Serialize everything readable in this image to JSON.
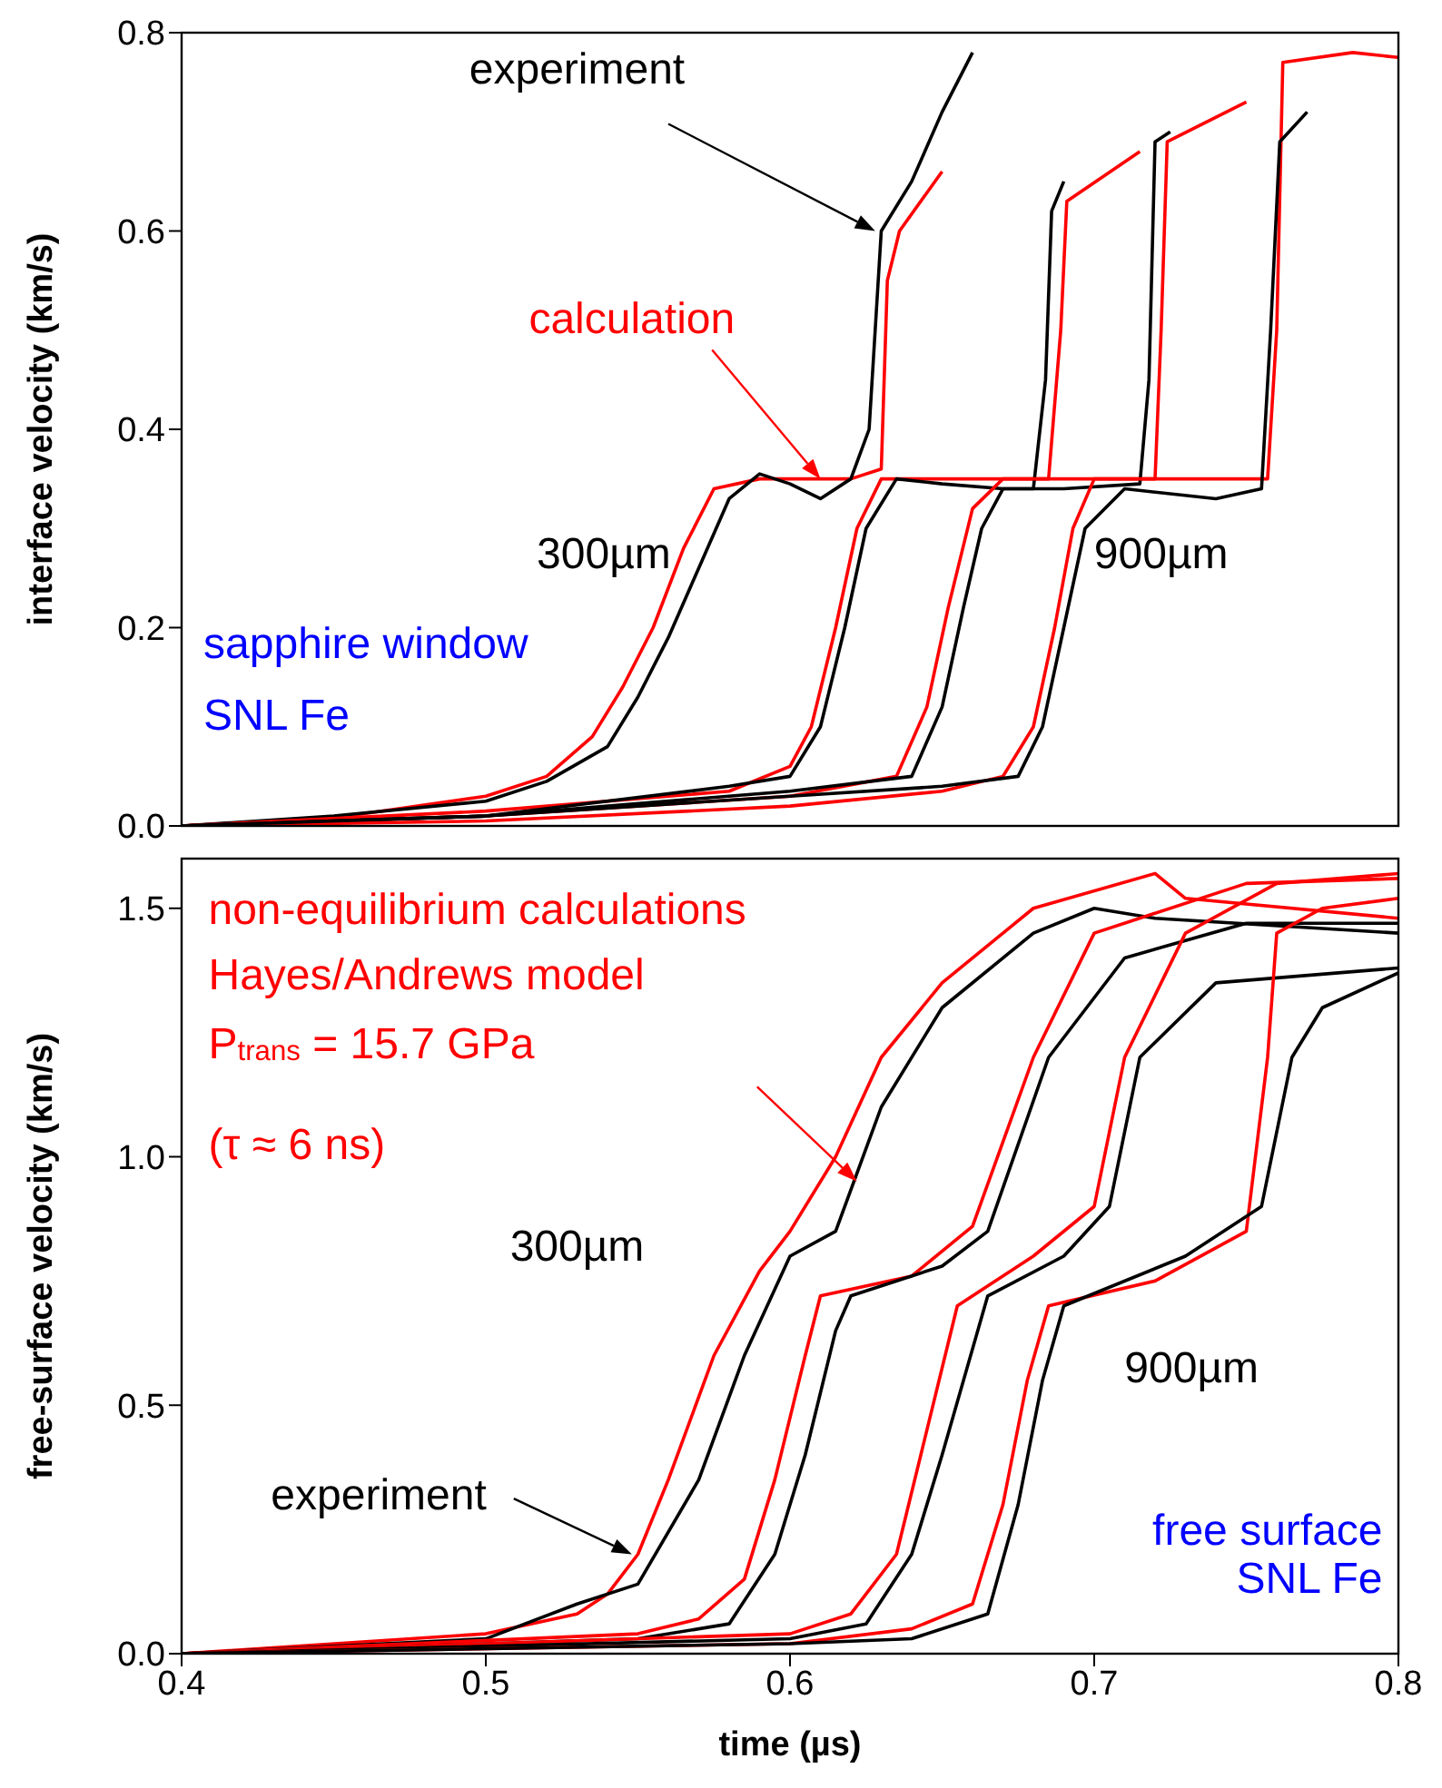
{
  "chart_data": [
    {
      "type": "line",
      "ylabel": "interface velocity (km/s)",
      "xlim": [
        0.4,
        0.8
      ],
      "xticks": [
        0.4,
        0.5,
        0.6,
        0.7,
        0.8
      ],
      "ylim": [
        0,
        0.8
      ],
      "yticks": [
        {
          "value": 0,
          "label": "0.0"
        },
        0.2,
        0.4,
        0.6,
        0.8
      ],
      "tick_labels": "y",
      "marker": "none",
      "line_style": "solid",
      "annotations": [
        "experiment",
        "calculation",
        "300µm",
        "900µm",
        "sapphire window",
        "SNL Fe"
      ],
      "series": [
        {
          "color": "#ff0000",
          "x": [
            0.4,
            0.45,
            0.5,
            0.52,
            0.535,
            0.545,
            0.555,
            0.565,
            0.575,
            0.59,
            0.62,
            0.63,
            0.632,
            0.636,
            0.65
          ],
          "values": [
            0,
            0.008,
            0.03,
            0.05,
            0.09,
            0.14,
            0.2,
            0.28,
            0.34,
            0.35,
            0.35,
            0.36,
            0.55,
            0.6,
            0.66
          ]
        },
        {
          "color": "#000000",
          "x": [
            0.4,
            0.45,
            0.5,
            0.52,
            0.54,
            0.55,
            0.56,
            0.57,
            0.58,
            0.59,
            0.6,
            0.61,
            0.62,
            0.626,
            0.63,
            0.64,
            0.65,
            0.66
          ],
          "values": [
            0,
            0.01,
            0.025,
            0.045,
            0.08,
            0.13,
            0.19,
            0.26,
            0.33,
            0.355,
            0.345,
            0.33,
            0.35,
            0.4,
            0.6,
            0.65,
            0.72,
            0.78
          ]
        },
        {
          "color": "#ff0000",
          "x": [
            0.4,
            0.5,
            0.58,
            0.6,
            0.607,
            0.615,
            0.622,
            0.63,
            0.65,
            0.685,
            0.689,
            0.691,
            0.715
          ],
          "values": [
            0,
            0.015,
            0.035,
            0.06,
            0.1,
            0.2,
            0.3,
            0.35,
            0.35,
            0.35,
            0.5,
            0.63,
            0.68
          ]
        },
        {
          "color": "#000000",
          "x": [
            0.4,
            0.5,
            0.58,
            0.6,
            0.61,
            0.618,
            0.625,
            0.635,
            0.65,
            0.67,
            0.68,
            0.684,
            0.686,
            0.69
          ],
          "values": [
            0,
            0.01,
            0.04,
            0.05,
            0.1,
            0.2,
            0.3,
            0.35,
            0.345,
            0.34,
            0.34,
            0.45,
            0.62,
            0.65
          ]
        },
        {
          "color": "#ff0000",
          "x": [
            0.4,
            0.5,
            0.6,
            0.635,
            0.645,
            0.652,
            0.66,
            0.67,
            0.72,
            0.722,
            0.724,
            0.75
          ],
          "values": [
            0,
            0.01,
            0.03,
            0.05,
            0.12,
            0.22,
            0.32,
            0.35,
            0.35,
            0.5,
            0.69,
            0.73
          ]
        },
        {
          "color": "#000000",
          "x": [
            0.4,
            0.5,
            0.6,
            0.64,
            0.65,
            0.657,
            0.663,
            0.67,
            0.69,
            0.715,
            0.718,
            0.72,
            0.725
          ],
          "values": [
            0,
            0.01,
            0.035,
            0.05,
            0.12,
            0.22,
            0.3,
            0.34,
            0.34,
            0.345,
            0.45,
            0.69,
            0.7
          ]
        },
        {
          "color": "#ff0000",
          "x": [
            0.4,
            0.5,
            0.6,
            0.65,
            0.67,
            0.68,
            0.687,
            0.693,
            0.7,
            0.757,
            0.76,
            0.762,
            0.785,
            0.8
          ],
          "values": [
            0,
            0.005,
            0.02,
            0.035,
            0.05,
            0.1,
            0.2,
            0.3,
            0.35,
            0.35,
            0.5,
            0.77,
            0.78,
            0.775
          ]
        },
        {
          "color": "#000000",
          "x": [
            0.4,
            0.5,
            0.6,
            0.65,
            0.675,
            0.683,
            0.69,
            0.697,
            0.71,
            0.74,
            0.755,
            0.758,
            0.761,
            0.77
          ],
          "values": [
            0,
            0.01,
            0.03,
            0.04,
            0.05,
            0.1,
            0.2,
            0.3,
            0.34,
            0.33,
            0.34,
            0.5,
            0.69,
            0.72
          ]
        }
      ]
    },
    {
      "type": "line",
      "xlabel": "time (µs)",
      "ylabel": "free-surface velocity (km/s)",
      "xlim": [
        0.4,
        0.8
      ],
      "xticks": [
        0.4,
        0.5,
        0.6,
        0.7,
        0.8
      ],
      "ylim": [
        0,
        1.6
      ],
      "yticks": [
        {
          "value": 0,
          "label": "0.0"
        },
        {
          "value": 0.5,
          "label": "0.5"
        },
        {
          "value": 1,
          "label": "1.0"
        },
        {
          "value": 1.5,
          "label": "1.5"
        }
      ],
      "marker": "none",
      "line_style": "solid",
      "annotations": [
        "non-equilibrium calculations",
        "Hayes/Andrews model",
        "P$_{trans}$ = 15.7 GPa",
        "(τ ≈ 6 ns)",
        "300µm",
        "900µm",
        "experiment",
        "free surface",
        "SNL Fe"
      ],
      "series": [
        {
          "color": "#ff0000",
          "x": [
            0.4,
            0.5,
            0.53,
            0.54,
            0.55,
            0.56,
            0.575,
            0.59,
            0.6,
            0.615,
            0.63,
            0.65,
            0.68,
            0.72,
            0.73,
            0.8
          ],
          "values": [
            0,
            0.04,
            0.08,
            0.12,
            0.2,
            0.35,
            0.6,
            0.77,
            0.85,
            1.0,
            1.2,
            1.35,
            1.5,
            1.57,
            1.52,
            1.48
          ]
        },
        {
          "color": "#000000",
          "x": [
            0.4,
            0.5,
            0.53,
            0.55,
            0.57,
            0.585,
            0.6,
            0.615,
            0.63,
            0.65,
            0.68,
            0.7,
            0.72,
            0.8
          ],
          "values": [
            0,
            0.03,
            0.1,
            0.14,
            0.35,
            0.6,
            0.8,
            0.85,
            1.1,
            1.3,
            1.45,
            1.5,
            1.48,
            1.45
          ]
        },
        {
          "color": "#ff0000",
          "x": [
            0.4,
            0.55,
            0.57,
            0.585,
            0.595,
            0.605,
            0.61,
            0.64,
            0.66,
            0.68,
            0.7,
            0.75,
            0.8
          ],
          "values": [
            0,
            0.04,
            0.07,
            0.15,
            0.35,
            0.6,
            0.72,
            0.76,
            0.86,
            1.2,
            1.45,
            1.55,
            1.56
          ]
        },
        {
          "color": "#000000",
          "x": [
            0.4,
            0.55,
            0.58,
            0.595,
            0.605,
            0.615,
            0.62,
            0.65,
            0.665,
            0.685,
            0.71,
            0.75,
            0.8
          ],
          "values": [
            0,
            0.03,
            0.06,
            0.2,
            0.4,
            0.65,
            0.72,
            0.78,
            0.85,
            1.2,
            1.4,
            1.47,
            1.47
          ]
        },
        {
          "color": "#ff0000",
          "x": [
            0.4,
            0.6,
            0.62,
            0.635,
            0.645,
            0.655,
            0.68,
            0.7,
            0.71,
            0.73,
            0.76,
            0.8
          ],
          "values": [
            0,
            0.04,
            0.08,
            0.2,
            0.45,
            0.7,
            0.8,
            0.9,
            1.2,
            1.45,
            1.55,
            1.57
          ]
        },
        {
          "color": "#000000",
          "x": [
            0.4,
            0.6,
            0.625,
            0.64,
            0.65,
            0.665,
            0.69,
            0.705,
            0.715,
            0.74,
            0.8
          ],
          "values": [
            0,
            0.03,
            0.06,
            0.2,
            0.4,
            0.72,
            0.8,
            0.9,
            1.2,
            1.35,
            1.38
          ]
        },
        {
          "color": "#ff0000",
          "x": [
            0.4,
            0.6,
            0.64,
            0.66,
            0.67,
            0.678,
            0.685,
            0.72,
            0.75,
            0.757,
            0.76,
            0.775,
            0.8
          ],
          "values": [
            0,
            0.02,
            0.05,
            0.1,
            0.3,
            0.55,
            0.7,
            0.75,
            0.85,
            1.2,
            1.45,
            1.5,
            1.52
          ]
        },
        {
          "color": "#000000",
          "x": [
            0.4,
            0.6,
            0.64,
            0.665,
            0.675,
            0.683,
            0.69,
            0.73,
            0.755,
            0.765,
            0.775,
            0.8
          ],
          "values": [
            0,
            0.02,
            0.03,
            0.08,
            0.3,
            0.55,
            0.7,
            0.8,
            0.9,
            1.2,
            1.3,
            1.37
          ]
        }
      ]
    }
  ]
}
